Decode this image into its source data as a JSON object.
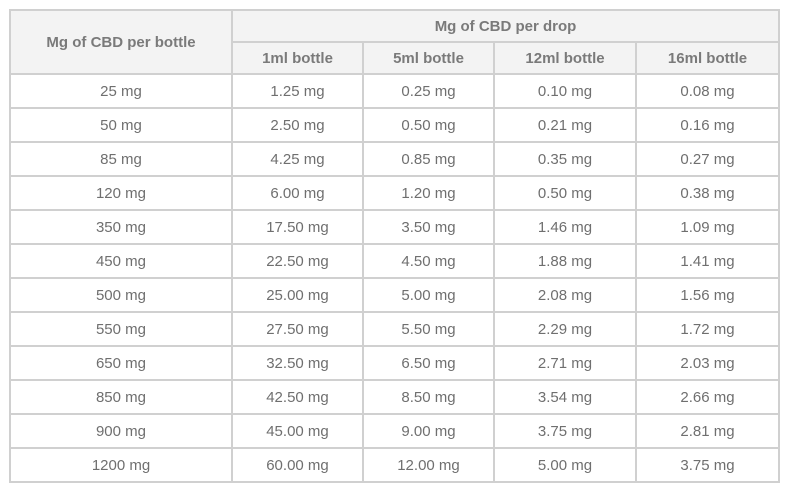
{
  "chart_data": {
    "type": "table",
    "headers": {
      "row_header": "Mg of CBD per bottle",
      "group_header": "Mg of CBD per drop",
      "columns": [
        "1ml bottle",
        "5ml bottle",
        "12ml bottle",
        "16ml bottle"
      ]
    },
    "rows": [
      {
        "bottle": "25 mg",
        "values": [
          "1.25 mg",
          "0.25 mg",
          "0.10 mg",
          "0.08 mg"
        ]
      },
      {
        "bottle": "50 mg",
        "values": [
          "2.50 mg",
          "0.50 mg",
          "0.21 mg",
          "0.16 mg"
        ]
      },
      {
        "bottle": "85 mg",
        "values": [
          "4.25 mg",
          "0.85 mg",
          "0.35 mg",
          "0.27 mg"
        ]
      },
      {
        "bottle": "120 mg",
        "values": [
          "6.00 mg",
          "1.20 mg",
          "0.50 mg",
          "0.38 mg"
        ]
      },
      {
        "bottle": "350 mg",
        "values": [
          "17.50 mg",
          "3.50 mg",
          "1.46 mg",
          "1.09 mg"
        ]
      },
      {
        "bottle": "450 mg",
        "values": [
          "22.50 mg",
          "4.50 mg",
          "1.88 mg",
          "1.41 mg"
        ]
      },
      {
        "bottle": "500 mg",
        "values": [
          "25.00 mg",
          "5.00 mg",
          "2.08 mg",
          "1.56 mg"
        ]
      },
      {
        "bottle": "550 mg",
        "values": [
          "27.50 mg",
          "5.50 mg",
          "2.29 mg",
          "1.72 mg"
        ]
      },
      {
        "bottle": "650 mg",
        "values": [
          "32.50 mg",
          "6.50 mg",
          "2.71 mg",
          "2.03 mg"
        ]
      },
      {
        "bottle": "850 mg",
        "values": [
          "42.50 mg",
          "8.50 mg",
          "3.54 mg",
          "2.66 mg"
        ]
      },
      {
        "bottle": "900 mg",
        "values": [
          "45.00 mg",
          "9.00 mg",
          "3.75 mg",
          "2.81 mg"
        ]
      },
      {
        "bottle": "1200 mg",
        "values": [
          "60.00 mg",
          "12.00 mg",
          "5.00 mg",
          "3.75 mg"
        ]
      }
    ]
  }
}
